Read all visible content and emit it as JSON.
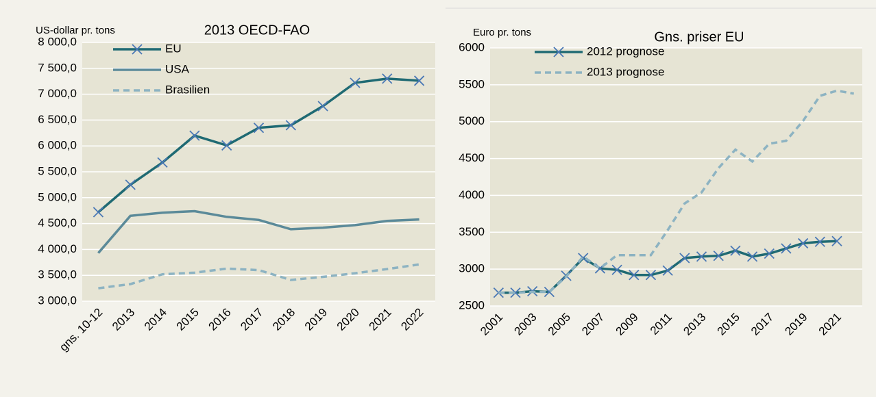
{
  "chart_data": [
    {
      "type": "line",
      "title": "2013 OECD-FAO",
      "y_label": "US-dollar pr. tons",
      "categories": [
        "gns. 10-12",
        "2013",
        "2014",
        "2015",
        "2016",
        "2017",
        "2018",
        "2019",
        "2020",
        "2021",
        "2022"
      ],
      "series": [
        {
          "name": "EU",
          "color": "#1f6a73",
          "style": "solid",
          "marker": "x",
          "values": [
            4720,
            5250,
            5680,
            6200,
            6010,
            6350,
            6400,
            6770,
            7220,
            7300,
            7260
          ]
        },
        {
          "name": "USA",
          "color": "#5b8a99",
          "style": "solid",
          "marker": "none",
          "values": [
            3930,
            4650,
            4710,
            4740,
            4630,
            4570,
            4390,
            4420,
            4470,
            4550,
            4580
          ]
        },
        {
          "name": "Brasilien",
          "color": "#8db3c2",
          "style": "dashed",
          "marker": "none",
          "values": [
            3250,
            3330,
            3520,
            3550,
            3630,
            3600,
            3410,
            3470,
            3540,
            3620,
            3710
          ]
        }
      ],
      "ylim": [
        3000,
        8000
      ],
      "yticks": [
        {
          "value": 3000,
          "label": "3 000,0"
        },
        {
          "value": 3500,
          "label": "3 500,0"
        },
        {
          "value": 4000,
          "label": "4 000,0"
        },
        {
          "value": 4500,
          "label": "4 500,0"
        },
        {
          "value": 5000,
          "label": "5 000,0"
        },
        {
          "value": 5500,
          "label": "5 500,0"
        },
        {
          "value": 6000,
          "label": "6 000,0"
        },
        {
          "value": 6500,
          "label": "6 500,0"
        },
        {
          "value": 7000,
          "label": "7 000,0"
        },
        {
          "value": 7500,
          "label": "7 500,0"
        },
        {
          "value": 8000,
          "label": "8 000,0"
        }
      ],
      "grid": true
    },
    {
      "type": "line",
      "title": "Gns. priser EU",
      "y_label": "Euro pr. tons",
      "categories": [
        "2001",
        null,
        "2003",
        null,
        "2005",
        null,
        "2007",
        null,
        "2009",
        null,
        "2011",
        null,
        "2013",
        null,
        "2015",
        null,
        "2017",
        null,
        "2019",
        null,
        "2021",
        null
      ],
      "series": [
        {
          "name": "2012 prognose",
          "color": "#1f6a73",
          "style": "solid",
          "marker": "x",
          "values": [
            2680,
            2680,
            2700,
            2690,
            2910,
            3150,
            3010,
            2990,
            2920,
            2920,
            2980,
            3150,
            3170,
            3180,
            3250,
            3170,
            3210,
            3280,
            3350,
            3370,
            3380,
            null
          ]
        },
        {
          "name": "2013 prognose",
          "color": "#8db3c2",
          "style": "dashed",
          "marker": "none",
          "values": [
            2680,
            2680,
            2690,
            2690,
            2900,
            3170,
            3010,
            3190,
            3190,
            3190,
            3530,
            3890,
            4040,
            4370,
            4620,
            4460,
            4700,
            4740,
            5010,
            5350,
            5420,
            5380
          ]
        }
      ],
      "ylim": [
        2500,
        6000
      ],
      "yticks": [
        2500,
        3000,
        3500,
        4000,
        4500,
        5000,
        5500,
        6000
      ],
      "grid": true
    }
  ]
}
